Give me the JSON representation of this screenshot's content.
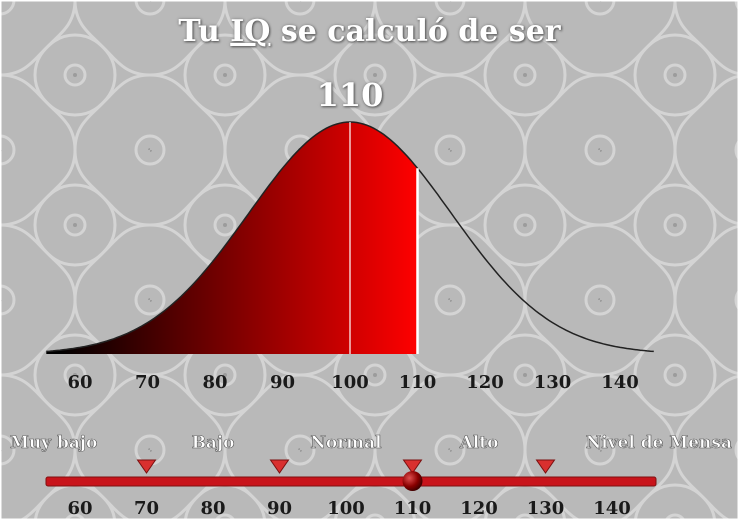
{
  "header": {
    "title_part1": "Tu ",
    "title_part2": "IQ",
    "title_part3": " se calculó de ser"
  },
  "chart_data": {
    "type": "area",
    "title": "",
    "distribution": "normal",
    "mean": 100,
    "std_dev": 15,
    "score": 110,
    "score_label": "110",
    "xlim": [
      55,
      145
    ],
    "x_ticks": [
      60,
      70,
      80,
      90,
      100,
      110,
      120,
      130,
      140
    ],
    "x_tick_labels": [
      "60",
      "70",
      "80",
      "90",
      "100",
      "110",
      "120",
      "130",
      "140"
    ],
    "fill_range": [
      55,
      110
    ],
    "fill_color_start": "#000000",
    "fill_color_end": "#ff0000",
    "curve_color": "#222222"
  },
  "scale": {
    "categories": [
      "Muy bajo",
      "Bajo",
      "Normal",
      "Alto",
      "Nivel de Mensa"
    ],
    "boundaries": [
      70,
      90,
      110,
      130
    ],
    "marker_value": 110,
    "tick_labels": [
      "60",
      "70",
      "80",
      "90",
      "100",
      "110",
      "120",
      "130",
      "140"
    ],
    "bar_color": "#c8141b"
  }
}
